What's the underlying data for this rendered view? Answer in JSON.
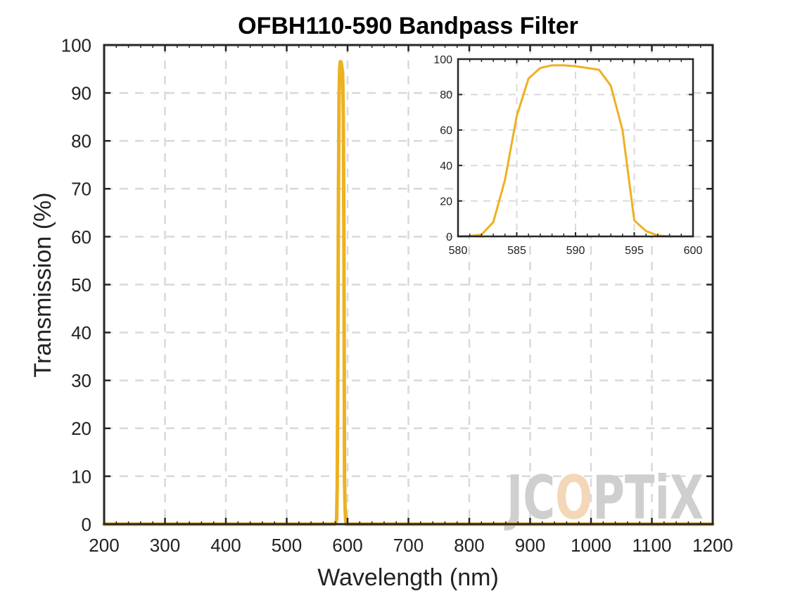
{
  "colors": {
    "series": "#EDB120",
    "grid": "#d9d9d9",
    "axis": "#262626",
    "watermark_gray": "#cfcfcf",
    "watermark_accent": "#f3d7b8"
  },
  "watermark": {
    "text": "JCOPTiX",
    "parts": [
      "JC",
      "O",
      "PTiX"
    ]
  },
  "chart_data": [
    {
      "type": "line",
      "title": "OFBH110-590 Bandpass Filter",
      "xlabel": "Wavelength (nm)",
      "ylabel": "Transmission (%)",
      "xlim": [
        200,
        1200
      ],
      "ylim": [
        0,
        100
      ],
      "xticks": [
        200,
        300,
        400,
        500,
        600,
        700,
        800,
        900,
        1000,
        1100,
        1200
      ],
      "yticks": [
        0,
        10,
        20,
        30,
        40,
        50,
        60,
        70,
        80,
        90,
        100
      ],
      "grid": true,
      "series": [
        {
          "x": [
            200,
            580,
            582,
            583,
            584,
            585,
            586,
            587,
            588,
            589,
            590,
            591,
            592,
            593,
            594,
            595,
            596,
            597,
            598,
            600,
            1200
          ],
          "y": [
            0,
            0,
            1,
            8,
            32,
            68,
            89,
            95,
            96.5,
            96.5,
            96,
            95,
            94,
            85,
            60,
            9,
            3,
            0.5,
            0,
            0,
            0
          ]
        }
      ]
    },
    {
      "type": "line",
      "title": "",
      "xlabel": "",
      "ylabel": "",
      "xlim": [
        580,
        600
      ],
      "ylim": [
        0,
        100
      ],
      "xticks": [
        580,
        585,
        590,
        595,
        600
      ],
      "yticks": [
        0,
        20,
        40,
        60,
        80,
        100
      ],
      "grid": true,
      "series": [
        {
          "x": [
            580,
            581,
            582,
            583,
            584,
            585,
            586,
            587,
            588,
            589,
            590,
            591,
            592,
            593,
            594,
            595,
            596,
            597,
            598,
            599,
            600
          ],
          "y": [
            0,
            0.2,
            1,
            8,
            32,
            68,
            89,
            95,
            96.5,
            96.5,
            96,
            95,
            94,
            85,
            60,
            9,
            3,
            0.5,
            0,
            0,
            0
          ]
        }
      ]
    }
  ]
}
